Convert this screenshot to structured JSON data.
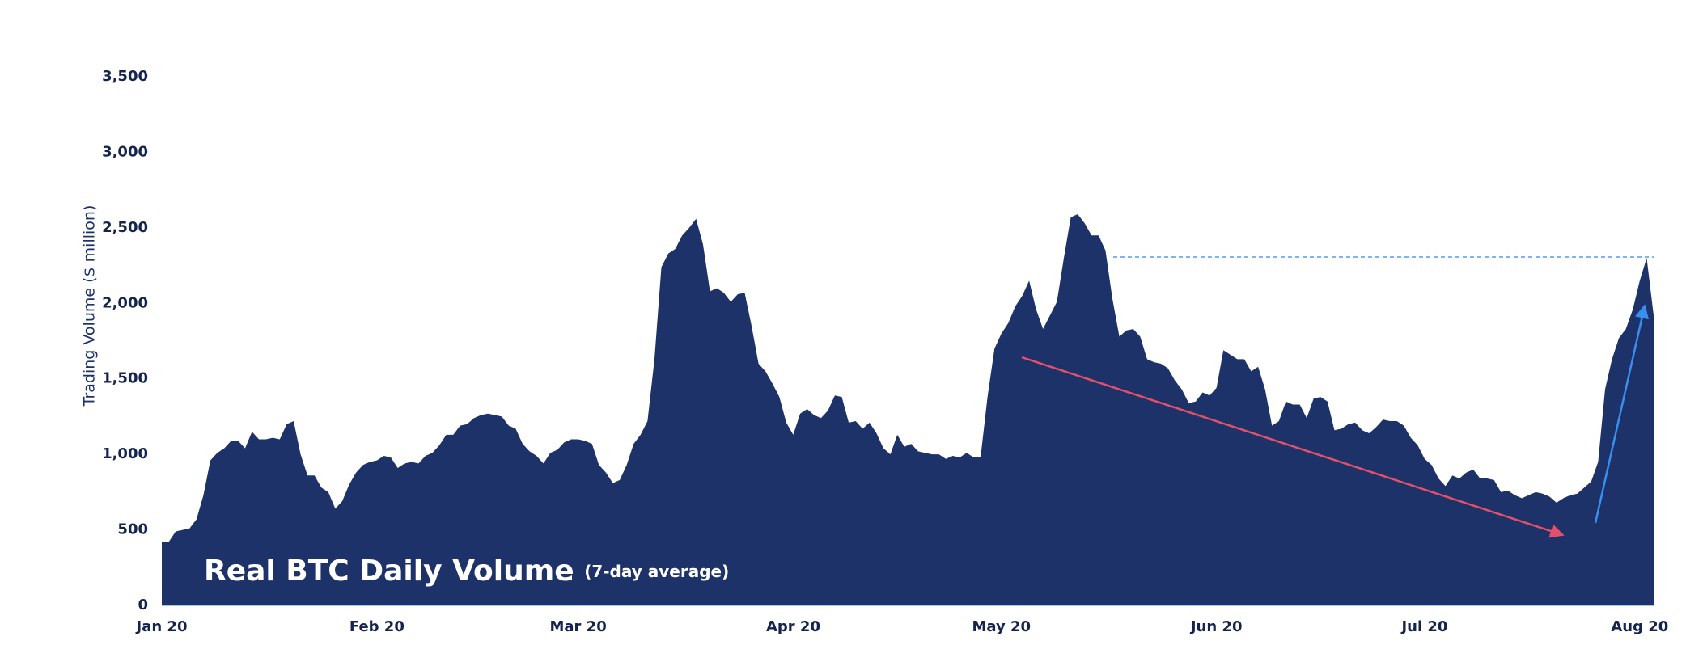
{
  "chart_data": {
    "type": "area",
    "title": "Real BTC Daily Volume",
    "subtitle": "(7-day average)",
    "y_label": "Trading Volume ($ million)",
    "color": "#1c3268",
    "grid": false,
    "categories": [
      "Jan 20",
      null,
      null,
      null,
      null,
      null,
      null,
      null,
      null,
      null,
      null,
      null,
      null,
      null,
      null,
      null,
      null,
      null,
      null,
      null,
      null,
      null,
      null,
      null,
      null,
      null,
      null,
      null,
      null,
      null,
      null,
      "Feb 20",
      null,
      null,
      null,
      null,
      null,
      null,
      null,
      null,
      null,
      null,
      null,
      null,
      null,
      null,
      null,
      null,
      null,
      null,
      null,
      null,
      null,
      null,
      null,
      null,
      null,
      null,
      null,
      null,
      "Mar 20",
      null,
      null,
      null,
      null,
      null,
      null,
      null,
      null,
      null,
      null,
      null,
      null,
      null,
      null,
      null,
      null,
      null,
      null,
      null,
      null,
      null,
      null,
      null,
      null,
      null,
      null,
      null,
      null,
      null,
      null,
      "Apr 20",
      null,
      null,
      null,
      null,
      null,
      null,
      null,
      null,
      null,
      null,
      null,
      null,
      null,
      null,
      null,
      null,
      null,
      null,
      null,
      null,
      null,
      null,
      null,
      null,
      null,
      null,
      null,
      null,
      null,
      "May 20",
      null,
      null,
      null,
      null,
      null,
      null,
      null,
      null,
      null,
      null,
      null,
      null,
      null,
      null,
      null,
      null,
      null,
      null,
      null,
      null,
      null,
      null,
      null,
      null,
      null,
      null,
      null,
      null,
      null,
      null,
      "Jun 20",
      null,
      null,
      null,
      null,
      null,
      null,
      null,
      null,
      null,
      null,
      null,
      null,
      null,
      null,
      null,
      null,
      null,
      null,
      null,
      null,
      null,
      null,
      null,
      null,
      null,
      null,
      null,
      null,
      null,
      "Jul 20",
      null,
      null,
      null,
      null,
      null,
      null,
      null,
      null,
      null,
      null,
      null,
      null,
      null,
      null,
      null,
      null,
      null,
      null,
      null,
      null,
      null,
      null,
      null,
      null,
      null,
      null,
      null,
      null,
      null,
      null,
      "Aug 20",
      null,
      null
    ],
    "values": [
      420,
      420,
      490,
      500,
      510,
      570,
      730,
      960,
      1010,
      1040,
      1090,
      1090,
      1040,
      1150,
      1100,
      1100,
      1110,
      1100,
      1200,
      1220,
      1000,
      860,
      860,
      780,
      750,
      640,
      690,
      800,
      880,
      930,
      950,
      960,
      990,
      980,
      910,
      940,
      950,
      940,
      990,
      1010,
      1060,
      1130,
      1130,
      1190,
      1200,
      1240,
      1260,
      1270,
      1260,
      1250,
      1190,
      1170,
      1070,
      1020,
      990,
      940,
      1010,
      1030,
      1080,
      1100,
      1100,
      1090,
      1070,
      930,
      880,
      810,
      830,
      930,
      1070,
      1130,
      1220,
      1630,
      2240,
      2330,
      2360,
      2450,
      2500,
      2560,
      2390,
      2080,
      2100,
      2070,
      2010,
      2060,
      2070,
      1850,
      1600,
      1550,
      1470,
      1380,
      1210,
      1130,
      1270,
      1300,
      1260,
      1240,
      1290,
      1390,
      1380,
      1210,
      1220,
      1170,
      1210,
      1140,
      1040,
      1000,
      1130,
      1050,
      1070,
      1020,
      1010,
      1000,
      1000,
      970,
      990,
      980,
      1010,
      980,
      980,
      1380,
      1700,
      1800,
      1870,
      1980,
      2050,
      2150,
      1960,
      1830,
      1920,
      2010,
      2300,
      2570,
      2590,
      2530,
      2450,
      2450,
      2350,
      2030,
      1780,
      1820,
      1830,
      1780,
      1630,
      1610,
      1600,
      1570,
      1490,
      1430,
      1340,
      1350,
      1410,
      1390,
      1440,
      1690,
      1660,
      1630,
      1630,
      1550,
      1580,
      1430,
      1190,
      1220,
      1350,
      1330,
      1330,
      1240,
      1370,
      1380,
      1350,
      1160,
      1170,
      1200,
      1210,
      1160,
      1140,
      1180,
      1230,
      1220,
      1220,
      1190,
      1110,
      1060,
      970,
      930,
      840,
      790,
      860,
      840,
      880,
      900,
      840,
      840,
      830,
      750,
      760,
      730,
      710,
      730,
      750,
      740,
      720,
      680,
      710,
      730,
      740,
      780,
      820,
      950,
      1430,
      1630,
      1770,
      1830,
      1960,
      2150,
      2300,
      1920
    ],
    "ylim": [
      0,
      3500
    ],
    "yticks": [
      0,
      500,
      {
        "value": 1000,
        "label": "1,000"
      },
      {
        "value": 1500,
        "label": "1,500"
      },
      {
        "value": 2000,
        "label": "2,000"
      },
      {
        "value": 2500,
        "label": "2,500"
      },
      {
        "value": 3000,
        "label": "3,000"
      },
      {
        "value": 3500,
        "label": "3,500"
      }
    ]
  }
}
